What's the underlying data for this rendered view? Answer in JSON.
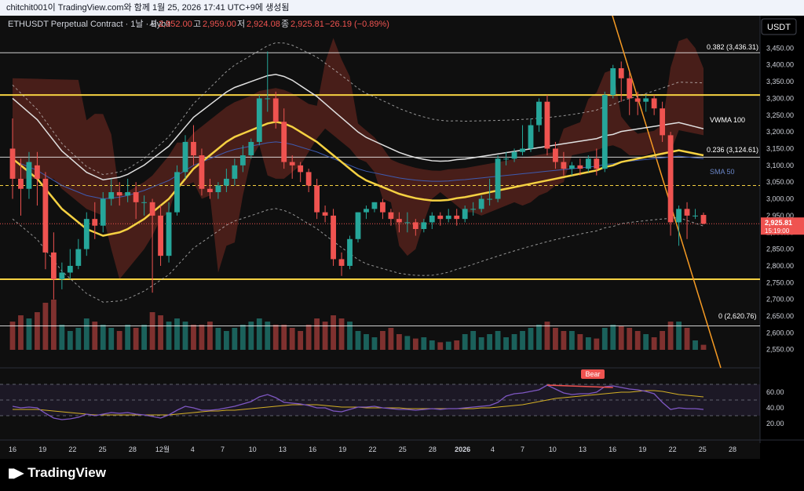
{
  "screenshot_caption": "chitchit001이 TradingView.com와 함께 1월 25, 2026 17:41 UTC+9에 생성됨",
  "legend": {
    "symbol": "ETHUSDT Perpetual Contract · 1날 · Bybit",
    "o_label": "시",
    "o_value": "2,952.00",
    "h_label": "고",
    "h_value": "2,959.00",
    "l_label": "저",
    "l_value": "2,924.08",
    "c_label": "종",
    "c_value": "2,925.81",
    "change": "−26.19 (−0.89%)"
  },
  "currency_button": "USDT",
  "price_axis": {
    "ticks": [
      "3,450.00",
      "3,400.00",
      "3,350.00",
      "3,300.00",
      "3,250.00",
      "3,200.00",
      "3,150.00",
      "3,100.00",
      "3,050.00",
      "3,000.00",
      "2,950.00",
      "2,900.00",
      "2,850.00",
      "2,800.00",
      "2,750.00",
      "2,700.00",
      "2,650.00",
      "2,600.00",
      "2,550.00"
    ],
    "last_price": "2,925.81",
    "countdown": "15:19:00"
  },
  "rsi_axis": {
    "ticks": [
      "60.00",
      "40.00",
      "20.00"
    ]
  },
  "time_axis": {
    "ticks": [
      "16",
      "19",
      "22",
      "25",
      "28",
      "12월",
      "4",
      "7",
      "10",
      "13",
      "16",
      "19",
      "22",
      "25",
      "28",
      "2026",
      "4",
      "7",
      "10",
      "13",
      "16",
      "19",
      "22",
      "25",
      "28"
    ]
  },
  "annotations": {
    "fib_382": "0.382 (3,436.31)",
    "fib_236": "0.236 (3,124.61)",
    "fib_0": "0 (2,620.76)",
    "vwma": "VWMA 100",
    "sma": "SMA 50",
    "bear": "Bear"
  },
  "colors": {
    "bull": "#26a69a",
    "bear": "#ef5350",
    "sma50": "#f5d142",
    "vwma100": "#e0e0e0",
    "fib": "#ffffff",
    "trendline": "#f59a23",
    "rsi": "#7e57c2",
    "rsi_ma": "#d4b025",
    "band": "#cfcfcf"
  },
  "footer": {
    "brand": "TradingView"
  },
  "chart_data": {
    "type": "candlestick",
    "price_ylim": [
      2540,
      3500
    ],
    "candles": [
      {
        "o": 3150,
        "h": 3240,
        "c": 3060,
        "l": 3000
      },
      {
        "o": 3060,
        "h": 3120,
        "c": 3030,
        "l": 2950
      },
      {
        "o": 3030,
        "h": 3140,
        "c": 3110,
        "l": 3000
      },
      {
        "o": 3100,
        "h": 3140,
        "c": 3060,
        "l": 2980
      },
      {
        "o": 3060,
        "h": 3080,
        "c": 2840,
        "l": 2790
      },
      {
        "o": 2840,
        "h": 2900,
        "c": 2760,
        "l": 2700
      },
      {
        "o": 2760,
        "h": 2810,
        "c": 2780,
        "l": 2730
      },
      {
        "o": 2780,
        "h": 2850,
        "c": 2800,
        "l": 2760
      },
      {
        "o": 2800,
        "h": 2880,
        "c": 2850,
        "l": 2790
      },
      {
        "o": 2850,
        "h": 2960,
        "c": 2940,
        "l": 2830
      },
      {
        "o": 2940,
        "h": 2990,
        "c": 2920,
        "l": 2880
      },
      {
        "o": 2920,
        "h": 3020,
        "c": 3000,
        "l": 2900
      },
      {
        "o": 3000,
        "h": 3060,
        "c": 3020,
        "l": 2980
      },
      {
        "o": 3020,
        "h": 3050,
        "c": 3010,
        "l": 2980
      },
      {
        "o": 3010,
        "h": 3060,
        "c": 3020,
        "l": 2990
      },
      {
        "o": 3020,
        "h": 3050,
        "c": 2990,
        "l": 2940
      },
      {
        "o": 2990,
        "h": 3010,
        "c": 2990,
        "l": 2950
      },
      {
        "o": 2990,
        "h": 3000,
        "c": 2950,
        "l": 2720
      },
      {
        "o": 2950,
        "h": 2980,
        "c": 2830,
        "l": 2800
      },
      {
        "o": 2830,
        "h": 2990,
        "c": 2960,
        "l": 2810
      },
      {
        "o": 2960,
        "h": 3100,
        "c": 3080,
        "l": 2950
      },
      {
        "o": 3080,
        "h": 3190,
        "c": 3170,
        "l": 3060
      },
      {
        "o": 3170,
        "h": 3220,
        "c": 3130,
        "l": 3100
      },
      {
        "o": 3130,
        "h": 3150,
        "c": 3030,
        "l": 3010
      },
      {
        "o": 3030,
        "h": 3060,
        "c": 3020,
        "l": 3000
      },
      {
        "o": 3020,
        "h": 3050,
        "c": 3040,
        "l": 3000
      },
      {
        "o": 3040,
        "h": 3090,
        "c": 3060,
        "l": 3020
      },
      {
        "o": 3060,
        "h": 3120,
        "c": 3100,
        "l": 3040
      },
      {
        "o": 3100,
        "h": 3160,
        "c": 3130,
        "l": 3080
      },
      {
        "o": 3130,
        "h": 3180,
        "c": 3170,
        "l": 3120
      },
      {
        "o": 3170,
        "h": 3310,
        "c": 3300,
        "l": 3160
      },
      {
        "o": 3300,
        "h": 3440,
        "c": 3300,
        "l": 3260
      },
      {
        "o": 3300,
        "h": 3320,
        "c": 3230,
        "l": 3210
      },
      {
        "o": 3230,
        "h": 3270,
        "c": 3110,
        "l": 3090
      },
      {
        "o": 3110,
        "h": 3130,
        "c": 3100,
        "l": 3060
      },
      {
        "o": 3100,
        "h": 3110,
        "c": 3080,
        "l": 3050
      },
      {
        "o": 3080,
        "h": 3090,
        "c": 3040,
        "l": 3020
      },
      {
        "o": 3040,
        "h": 3060,
        "c": 2960,
        "l": 2940
      },
      {
        "o": 2960,
        "h": 2980,
        "c": 2950,
        "l": 2930
      },
      {
        "o": 2950,
        "h": 2970,
        "c": 2820,
        "l": 2800
      },
      {
        "o": 2820,
        "h": 2840,
        "c": 2800,
        "l": 2770
      },
      {
        "o": 2800,
        "h": 2890,
        "c": 2880,
        "l": 2790
      },
      {
        "o": 2880,
        "h": 2960,
        "c": 2960,
        "l": 2870
      },
      {
        "o": 2960,
        "h": 2980,
        "c": 2970,
        "l": 2940
      },
      {
        "o": 2970,
        "h": 2990,
        "c": 2990,
        "l": 2960
      },
      {
        "o": 2990,
        "h": 3000,
        "c": 2960,
        "l": 2940
      },
      {
        "o": 2960,
        "h": 2970,
        "c": 2940,
        "l": 2920
      },
      {
        "o": 2940,
        "h": 2960,
        "c": 2930,
        "l": 2900
      },
      {
        "o": 2930,
        "h": 2960,
        "c": 2930,
        "l": 2900
      },
      {
        "o": 2930,
        "h": 2940,
        "c": 2910,
        "l": 2890
      },
      {
        "o": 2910,
        "h": 2940,
        "c": 2930,
        "l": 2900
      },
      {
        "o": 2930,
        "h": 2960,
        "c": 2950,
        "l": 2910
      },
      {
        "o": 2950,
        "h": 2960,
        "c": 2940,
        "l": 2920
      },
      {
        "o": 2940,
        "h": 2970,
        "c": 2950,
        "l": 2930
      },
      {
        "o": 2950,
        "h": 2970,
        "c": 2940,
        "l": 2920
      },
      {
        "o": 2940,
        "h": 2980,
        "c": 2970,
        "l": 2930
      },
      {
        "o": 2970,
        "h": 2990,
        "c": 2970,
        "l": 2950
      },
      {
        "o": 2970,
        "h": 3010,
        "c": 3000,
        "l": 2960
      },
      {
        "o": 3000,
        "h": 3060,
        "c": 3000,
        "l": 2980
      },
      {
        "o": 3000,
        "h": 3130,
        "c": 3120,
        "l": 2990
      },
      {
        "o": 3120,
        "h": 3140,
        "c": 3120,
        "l": 3100
      },
      {
        "o": 3120,
        "h": 3150,
        "c": 3140,
        "l": 3110
      },
      {
        "o": 3140,
        "h": 3220,
        "c": 3150,
        "l": 3130
      },
      {
        "o": 3150,
        "h": 3240,
        "c": 3220,
        "l": 3140
      },
      {
        "o": 3220,
        "h": 3300,
        "c": 3290,
        "l": 3200
      },
      {
        "o": 3290,
        "h": 3310,
        "c": 3150,
        "l": 3130
      },
      {
        "o": 3150,
        "h": 3170,
        "c": 3110,
        "l": 3090
      },
      {
        "o": 3110,
        "h": 3140,
        "c": 3090,
        "l": 3070
      },
      {
        "o": 3090,
        "h": 3110,
        "c": 3100,
        "l": 3070
      },
      {
        "o": 3100,
        "h": 3120,
        "c": 3090,
        "l": 3070
      },
      {
        "o": 3090,
        "h": 3130,
        "c": 3120,
        "l": 3080
      },
      {
        "o": 3120,
        "h": 3150,
        "c": 3090,
        "l": 3070
      },
      {
        "o": 3090,
        "h": 3320,
        "c": 3310,
        "l": 3080
      },
      {
        "o": 3310,
        "h": 3400,
        "c": 3390,
        "l": 3300
      },
      {
        "o": 3390,
        "h": 3410,
        "c": 3360,
        "l": 3290
      },
      {
        "o": 3360,
        "h": 3380,
        "c": 3300,
        "l": 3250
      },
      {
        "o": 3300,
        "h": 3320,
        "c": 3290,
        "l": 3250
      },
      {
        "o": 3290,
        "h": 3310,
        "c": 3300,
        "l": 3260
      },
      {
        "o": 3300,
        "h": 3310,
        "c": 3270,
        "l": 3250
      },
      {
        "o": 3270,
        "h": 3290,
        "c": 3190,
        "l": 3170
      },
      {
        "o": 3190,
        "h": 3200,
        "c": 2930,
        "l": 2890
      },
      {
        "o": 2930,
        "h": 2980,
        "c": 2970,
        "l": 2860
      },
      {
        "o": 2970,
        "h": 2990,
        "c": 2950,
        "l": 2880
      },
      {
        "o": 2950,
        "h": 2970,
        "c": 2950,
        "l": 2940
      },
      {
        "o": 2952,
        "h": 2959,
        "c": 2925.81,
        "l": 2924.08
      }
    ],
    "volume_relative": [
      0.45,
      0.55,
      0.5,
      0.6,
      0.75,
      0.8,
      0.4,
      0.3,
      0.35,
      0.5,
      0.45,
      0.4,
      0.35,
      0.3,
      0.4,
      0.35,
      0.4,
      0.6,
      0.55,
      0.45,
      0.5,
      0.45,
      0.4,
      0.4,
      0.45,
      0.35,
      0.3,
      0.35,
      0.4,
      0.45,
      0.5,
      0.45,
      0.4,
      0.4,
      0.35,
      0.3,
      0.4,
      0.5,
      0.45,
      0.55,
      0.5,
      0.45,
      0.3,
      0.25,
      0.2,
      0.3,
      0.35,
      0.25,
      0.22,
      0.18,
      0.2,
      0.15,
      0.12,
      0.13,
      0.15,
      0.25,
      0.3,
      0.2,
      0.25,
      0.3,
      0.2,
      0.25,
      0.3,
      0.35,
      0.4,
      0.45,
      0.35,
      0.3,
      0.3,
      0.25,
      0.2,
      0.18,
      0.35,
      0.4,
      0.38,
      0.35,
      0.3,
      0.25,
      0.2,
      0.3,
      0.45,
      0.45,
      0.35,
      0.15,
      0.08
    ],
    "sma50": [
      3120,
      3100,
      3080,
      3060,
      3030,
      3000,
      2970,
      2950,
      2930,
      2910,
      2900,
      2890,
      2895,
      2900,
      2910,
      2925,
      2940,
      2960,
      2980,
      3000,
      3030,
      3060,
      3090,
      3110,
      3130,
      3150,
      3170,
      3185,
      3195,
      3205,
      3215,
      3225,
      3230,
      3225,
      3215,
      3200,
      3185,
      3170,
      3150,
      3130,
      3110,
      3090,
      3070,
      3055,
      3045,
      3035,
      3025,
      3015,
      3008,
      3002,
      2998,
      2995,
      2995,
      2997,
      3002,
      3005,
      3010,
      3015,
      3020,
      3025,
      3030,
      3035,
      3040,
      3045,
      3050,
      3055,
      3060,
      3065,
      3070,
      3075,
      3080,
      3085,
      3095,
      3100,
      3110,
      3115,
      3120,
      3125,
      3130,
      3135,
      3140,
      3145,
      3140,
      3135,
      3130
    ],
    "rsi": [
      42,
      40,
      41,
      40,
      33,
      27,
      25,
      26,
      28,
      32,
      30,
      32,
      34,
      33,
      34,
      32,
      31,
      29,
      27,
      31,
      37,
      42,
      40,
      37,
      37,
      38,
      40,
      42,
      45,
      48,
      54,
      57,
      53,
      47,
      46,
      45,
      43,
      40,
      40,
      36,
      35,
      38,
      41,
      41,
      42,
      40,
      39,
      38,
      38,
      37,
      38,
      39,
      38,
      39,
      39,
      40,
      41,
      42,
      43,
      47,
      55,
      58,
      59,
      61,
      63,
      69,
      64,
      59,
      57,
      58,
      58,
      60,
      67,
      68,
      66,
      64,
      63,
      61,
      58,
      47,
      38,
      40,
      39,
      39,
      38
    ],
    "rsi_ma": [
      38,
      38,
      38,
      38,
      37,
      36,
      35,
      34,
      33,
      32,
      31,
      31,
      31,
      31,
      31,
      31,
      31,
      31,
      31,
      31,
      32,
      33,
      34,
      35,
      36,
      36,
      37,
      37,
      38,
      39,
      40,
      41,
      42,
      43,
      44,
      44,
      44,
      44,
      43,
      42,
      41,
      41,
      41,
      40,
      40,
      40,
      40,
      40,
      39,
      39,
      39,
      39,
      39,
      39,
      39,
      39,
      39,
      40,
      40,
      41,
      42,
      43,
      44,
      46,
      48,
      50,
      52,
      53,
      54,
      55,
      56,
      57,
      58,
      59,
      60,
      60,
      61,
      62,
      62,
      61,
      59,
      57,
      56,
      55,
      54
    ],
    "fib_levels": [
      {
        "label": "0.382",
        "price": 3436.31
      },
      {
        "label": "0.236",
        "price": 3124.61
      },
      {
        "label": "0",
        "price": 2620.76
      }
    ],
    "horizontal_levels": [
      3310,
      2760
    ],
    "dashed_level": 3040,
    "last_price": 2925.81
  }
}
